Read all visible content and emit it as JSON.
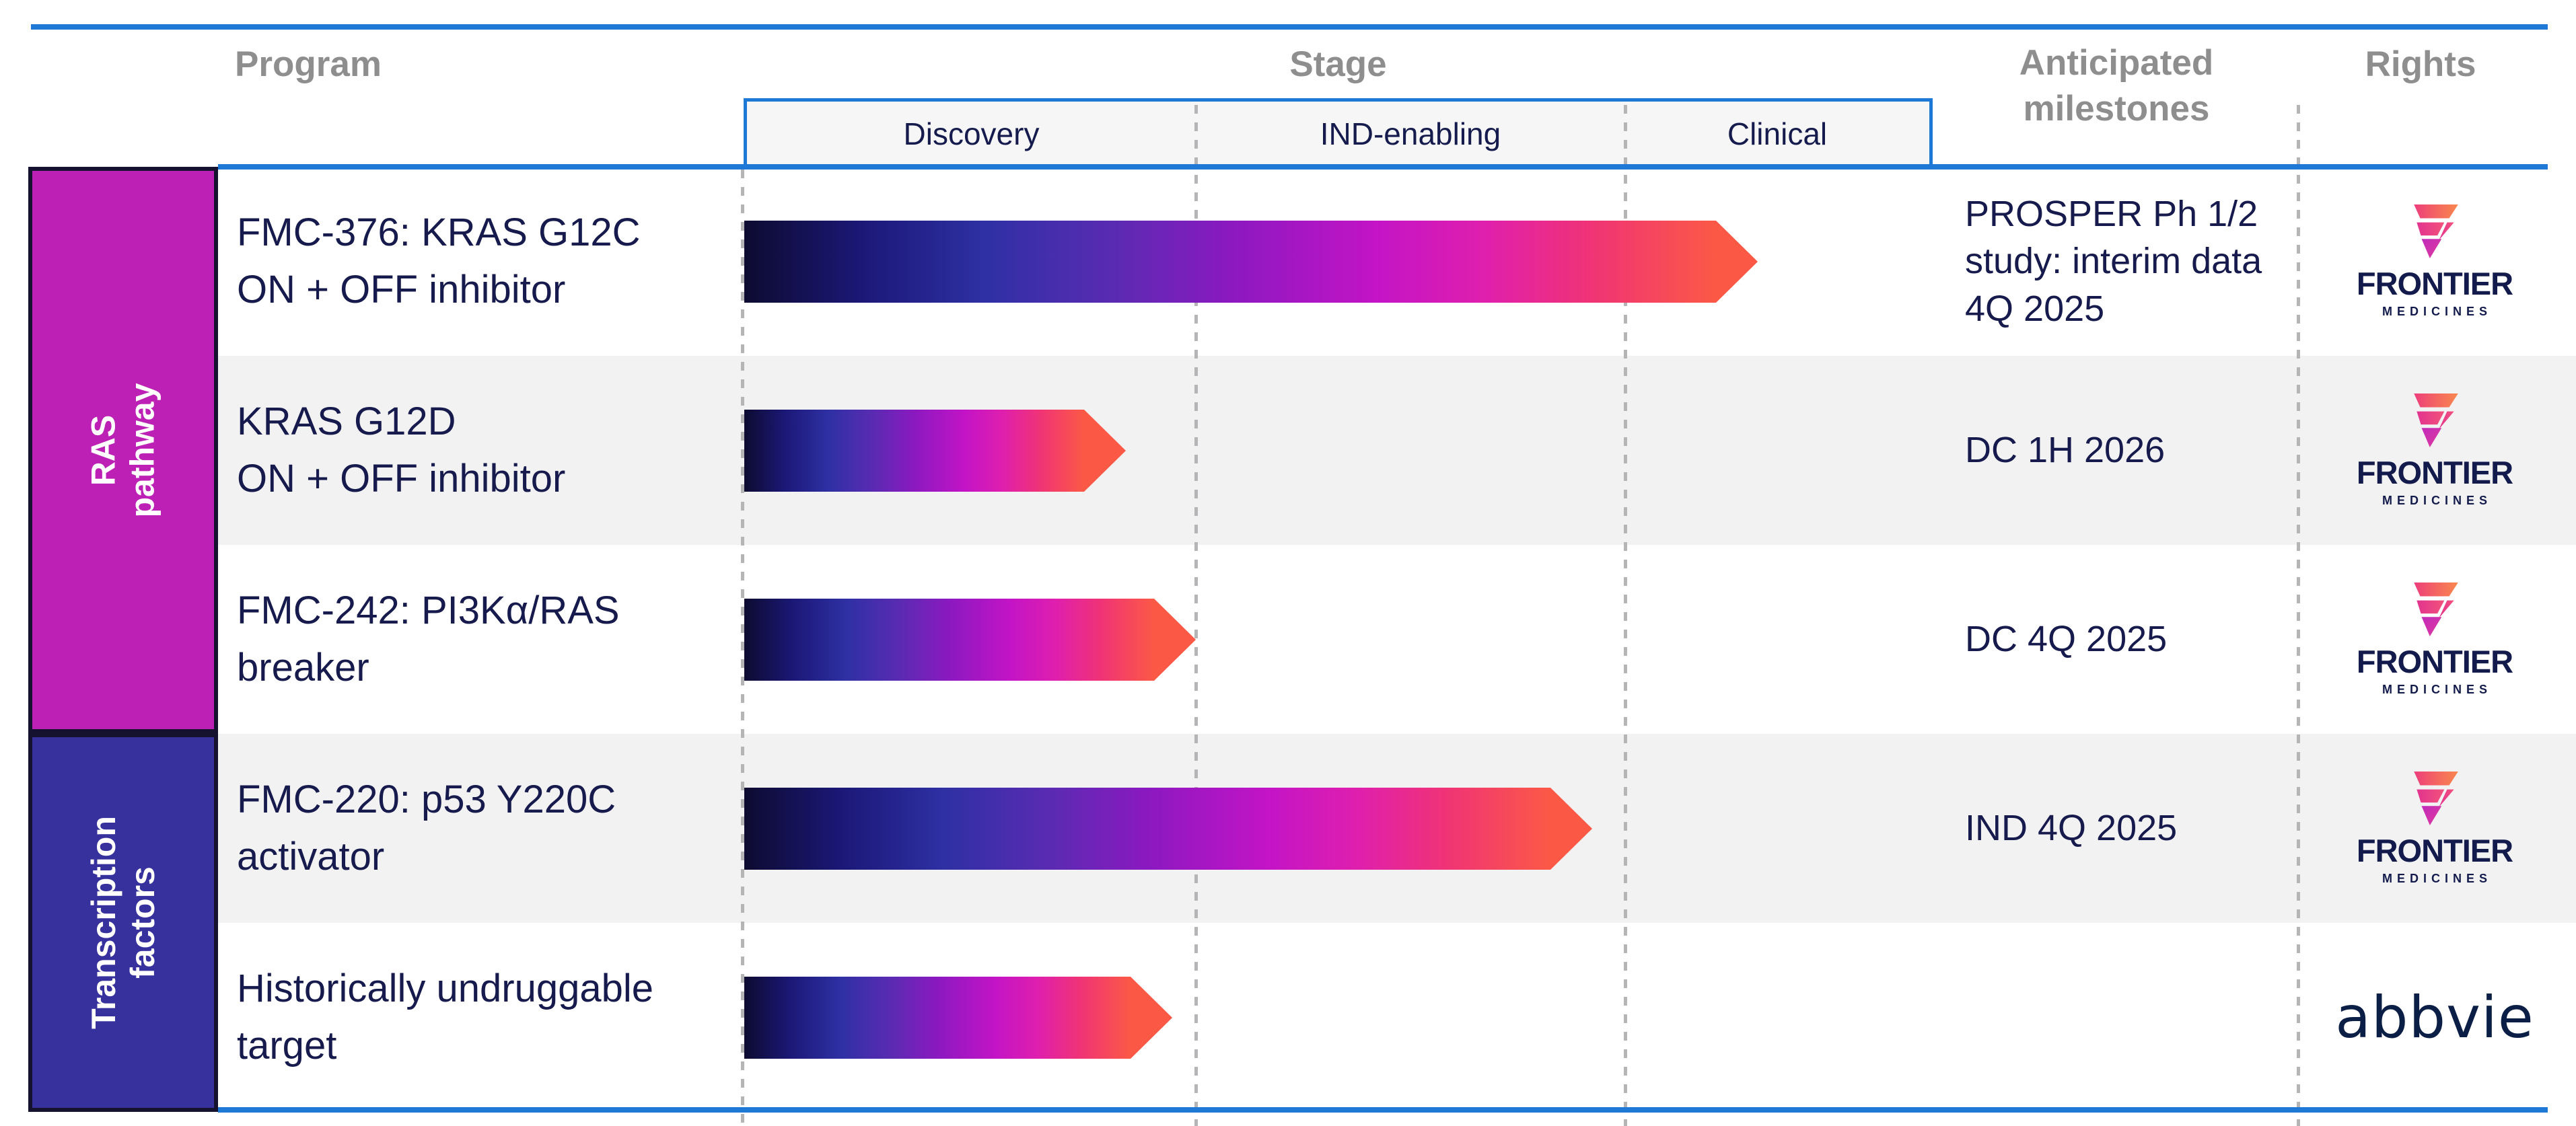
{
  "slide": {
    "header": {
      "program": "Program",
      "stage": "Stage",
      "milestones": "Anticipated\nmilestones",
      "rights": "Rights"
    },
    "stage_columns": [
      "Discovery",
      "IND-enabling",
      "Clinical"
    ],
    "categories": [
      {
        "label": "RAS pathway",
        "color": "#bd20b4",
        "row_span": 3
      },
      {
        "label": "Transcription\nfactors",
        "color": "#36319d",
        "row_span": 2
      }
    ],
    "rows": [
      {
        "program": [
          "FMC-376: KRAS G12C",
          "ON + OFF inhibitor"
        ],
        "milestone": [
          "PROSPER Ph 1/2",
          "study: interim data",
          "4Q 2025"
        ],
        "rights": "frontier",
        "arrow": {
          "start_x": 1106,
          "tip_x": 2612,
          "stage_progress": 2.43
        }
      },
      {
        "program": [
          "KRAS G12D",
          "ON + OFF inhibitor"
        ],
        "milestone": [
          "DC 1H 2026"
        ],
        "rights": "frontier",
        "arrow": {
          "start_x": 1106,
          "tip_x": 1673,
          "stage_progress": 0.85
        }
      },
      {
        "program": [
          "FMC-242: PI3Kα/RAS",
          "breaker"
        ],
        "milestone": [
          "DC 4Q 2025"
        ],
        "rights": "frontier",
        "arrow": {
          "start_x": 1106,
          "tip_x": 1777,
          "stage_progress": 1.0
        }
      },
      {
        "program": [
          "FMC-220: p53 Y220C",
          "activator"
        ],
        "milestone": [
          "IND 4Q 2025"
        ],
        "rights": "frontier",
        "arrow": {
          "start_x": 1106,
          "tip_x": 2366,
          "stage_progress": 1.92
        }
      },
      {
        "program": [
          "Historically undruggable",
          "target"
        ],
        "milestone": [],
        "rights": "abbvie",
        "arrow": {
          "start_x": 1106,
          "tip_x": 1742,
          "stage_progress": 0.95
        }
      }
    ],
    "brands": {
      "frontier": {
        "name": "FRONTIER",
        "sub": "MEDICINES"
      },
      "abbvie": {
        "name": "abbvie"
      }
    },
    "colors": {
      "rule_blue": "#1e78d6",
      "ras_band": "#bd20b4",
      "transcription_band": "#36319d",
      "navy_text": "#161a4c",
      "header_gray": "#8e8e8e",
      "row_stripe": "#f2f2f3",
      "arrow_gradient": [
        "#0d0b30",
        "#2f30a4",
        "#8b19c0",
        "#c314c6",
        "#f03376",
        "#fb5946"
      ]
    }
  },
  "chart_data": {
    "type": "bar",
    "title": "Pipeline: program progress by stage",
    "categories": [
      "FMC-376: KRAS G12C ON + OFF inhibitor",
      "KRAS G12D ON + OFF inhibitor",
      "FMC-242: PI3Kα/RAS breaker",
      "FMC-220: p53 Y220C activator",
      "Historically undruggable target"
    ],
    "category_groups": [
      "RAS pathway",
      "RAS pathway",
      "RAS pathway",
      "Transcription factors",
      "Transcription factors"
    ],
    "stages": [
      "Discovery",
      "IND-enabling",
      "Clinical"
    ],
    "values_stage_units": [
      2.43,
      0.85,
      1.0,
      1.92,
      0.95
    ],
    "xlabel": "Stage",
    "xlim": [
      0,
      3
    ],
    "grid": "dotted-vertical-stage-boundaries",
    "milestones": [
      "PROSPER Ph 1/2 study: interim data 4Q 2025",
      "DC 1H 2026",
      "DC 4Q 2025",
      "IND 4Q 2025",
      ""
    ],
    "rights": [
      "Frontier Medicines",
      "Frontier Medicines",
      "Frontier Medicines",
      "Frontier Medicines",
      "abbvie"
    ]
  }
}
